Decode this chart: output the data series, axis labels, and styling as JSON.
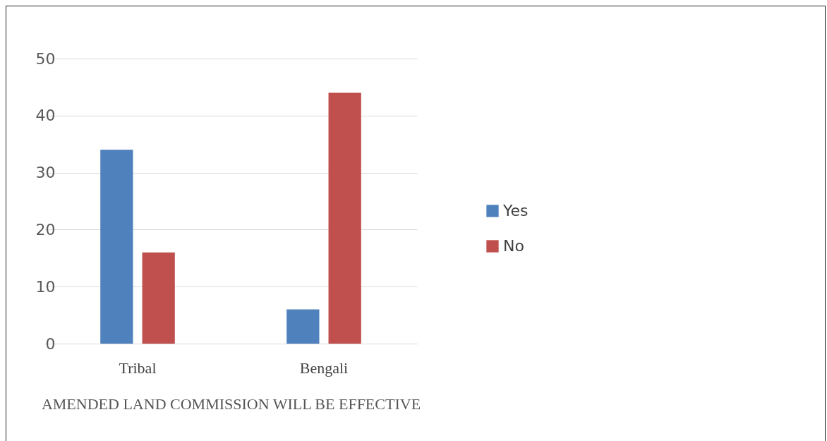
{
  "chart_data": {
    "type": "bar",
    "xlabel": "AMENDED LAND COMMISSION WILL BE EFFECTIVE",
    "categories": [
      "Tribal",
      "Bengali"
    ],
    "series": [
      {
        "name": "Yes",
        "color": "#4f81bd",
        "values": [
          34,
          6
        ]
      },
      {
        "name": "No",
        "color": "#c0504d",
        "values": [
          16,
          44
        ]
      }
    ],
    "ylim": [
      0,
      50
    ],
    "yticks": [
      0,
      10,
      20,
      30,
      40,
      50
    ],
    "grid": "y",
    "legend": "right"
  }
}
